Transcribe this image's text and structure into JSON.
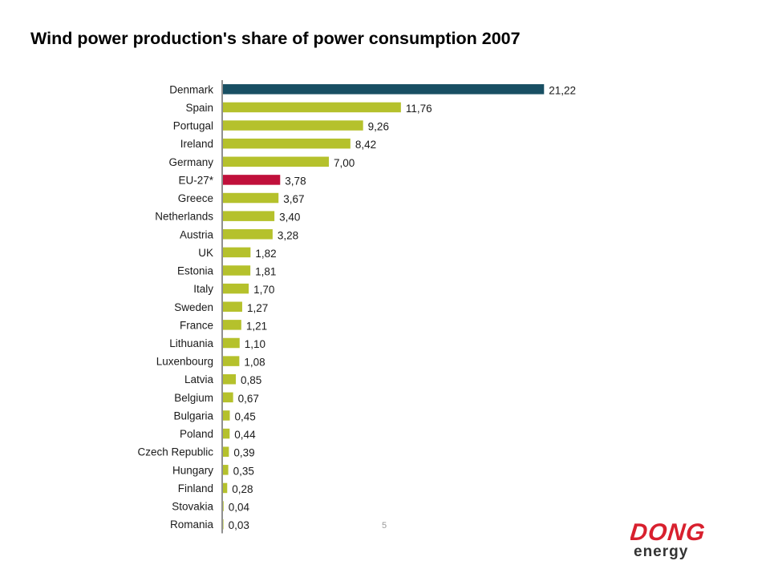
{
  "title": "Wind power production's share of power consumption 2007",
  "page_number": "5",
  "logo": {
    "text_top": "DONG",
    "text_bottom": "energy"
  },
  "colors": {
    "highlight_top": "#184f63",
    "highlight_aggregate": "#c0103b",
    "default_bar": "#b5c12c",
    "logo_red": "#d8202e",
    "logo_dark": "#333333"
  },
  "chart_data": {
    "type": "bar",
    "orientation": "horizontal",
    "title": "Wind power production's share of power consumption 2007",
    "xlabel": "",
    "ylabel": "",
    "xlim": [
      0,
      22
    ],
    "grid": false,
    "legend": "none",
    "categories": [
      "Denmark",
      "Spain",
      "Portugal",
      "Ireland",
      "Germany",
      "EU-27*",
      "Greece",
      "Netherlands",
      "Austria",
      "UK",
      "Estonia",
      "Italy",
      "Sweden",
      "France",
      "Lithuania",
      "Luxenbourg",
      "Latvia",
      "Belgium",
      "Bulgaria",
      "Poland",
      "Czech Republic",
      "Hungary",
      "Finland",
      "Stovakia",
      "Romania"
    ],
    "values": [
      21.22,
      11.76,
      9.26,
      8.42,
      7.0,
      3.78,
      3.67,
      3.4,
      3.28,
      1.82,
      1.81,
      1.7,
      1.27,
      1.21,
      1.1,
      1.08,
      0.85,
      0.67,
      0.45,
      0.44,
      0.39,
      0.35,
      0.28,
      0.04,
      0.03
    ],
    "value_labels": [
      "21,22",
      "11,76",
      "9,26",
      "8,42",
      "7,00",
      "3,78",
      "3,67",
      "3,40",
      "3,28",
      "1,82",
      "1,81",
      "1,70",
      "1,27",
      "1,21",
      "1,10",
      "1,08",
      "0,85",
      "0,67",
      "0,45",
      "0,44",
      "0,39",
      "0,35",
      "0,28",
      "0,04",
      "0,03"
    ],
    "highlights": {
      "Denmark": "highlight_top",
      "EU-27*": "highlight_aggregate"
    }
  }
}
